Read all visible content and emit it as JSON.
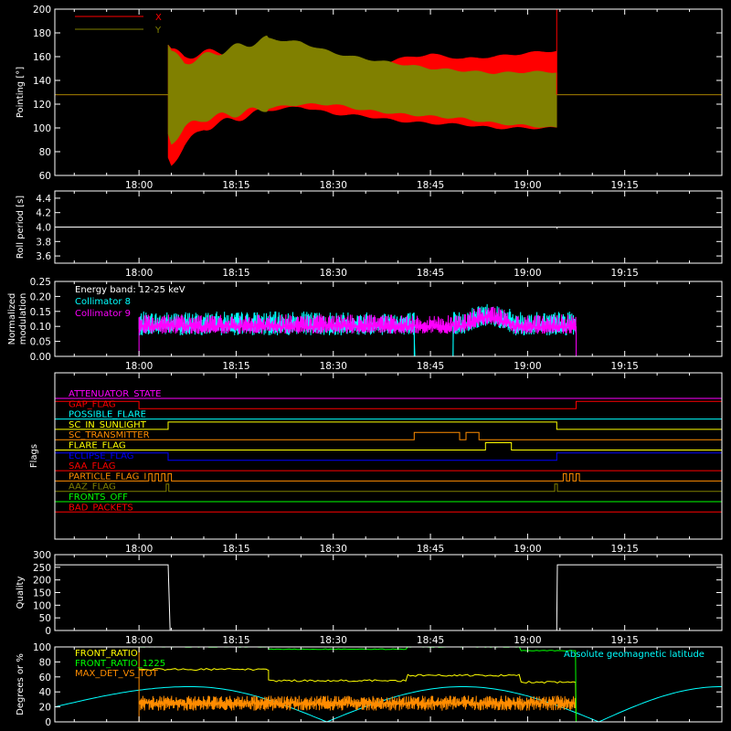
{
  "time_axis": {
    "ticks": [
      "18:00",
      "18:15",
      "18:30",
      "18:45",
      "19:00",
      "19:15"
    ],
    "tick_minutes_from_1800": [
      0,
      15,
      30,
      45,
      60,
      75
    ],
    "range_minutes_from_1800": [
      -13,
      90
    ]
  },
  "chart_data": [
    {
      "id": "pointing",
      "type": "area",
      "ylabel": "Pointing [°]",
      "ylim": [
        60,
        200
      ],
      "yticks": [
        "60",
        "80",
        "100",
        "120",
        "140",
        "160",
        "180",
        "200"
      ],
      "legend_position": "top-left",
      "series": [
        {
          "name": "X",
          "color": "#ff0000",
          "baseline": 128,
          "start": 18.07,
          "end": 19.08,
          "envelope_minutes": [
            4.5,
            5,
            7,
            10,
            15,
            20,
            25,
            30,
            35,
            40,
            45,
            50,
            55,
            60,
            64.5
          ],
          "upper": [
            170,
            165,
            160,
            163,
            165,
            160,
            155,
            152,
            150,
            158,
            162,
            158,
            160,
            163,
            165
          ],
          "lower": [
            75,
            70,
            85,
            100,
            108,
            115,
            118,
            112,
            110,
            106,
            104,
            103,
            100,
            100,
            100
          ]
        },
        {
          "name": "Y",
          "color": "#808000",
          "baseline": 128,
          "start": 18.07,
          "end": 19.08,
          "envelope_minutes": [
            4.5,
            5,
            7,
            10,
            15,
            20,
            25,
            30,
            35,
            40,
            45,
            50,
            55,
            60,
            64.5
          ],
          "upper": [
            170,
            163,
            155,
            160,
            168,
            175,
            172,
            163,
            158,
            154,
            150,
            148,
            146,
            147,
            147
          ],
          "lower": [
            95,
            88,
            100,
            108,
            112,
            117,
            120,
            120,
            115,
            112,
            110,
            108,
            104,
            102,
            100
          ]
        }
      ]
    },
    {
      "id": "roll_period",
      "type": "line",
      "ylabel": "Roll period [s]",
      "ylim": [
        3.5,
        4.5
      ],
      "yticks": [
        "3.6",
        "3.8",
        "4.0",
        "4.2",
        "4.4"
      ],
      "series": [
        {
          "name": "",
          "color": "#ffffff",
          "value": 4.0
        }
      ]
    },
    {
      "id": "modulation",
      "type": "line",
      "ylabel": "Normalized modulation",
      "ylim": [
        0.0,
        0.25
      ],
      "yticks": [
        "0.00",
        "0.05",
        "0.10",
        "0.15",
        "0.20",
        "0.25"
      ],
      "annotation": "Energy band: 12-25 keV",
      "series": [
        {
          "name": "Collimator 8",
          "color": "#00ffff",
          "start": 0,
          "end": 67.5,
          "mean": 0.1,
          "gap": [
            42.5,
            48.5
          ]
        },
        {
          "name": "Collimator 9",
          "color": "#ff00ff",
          "start": 0,
          "end": 67.5,
          "mean": 0.1
        }
      ]
    },
    {
      "id": "flags",
      "type": "line",
      "ylabel": "Flags",
      "series": [
        {
          "name": "ATTENUATOR_STATE",
          "color": "#ff00ff",
          "on_intervals": []
        },
        {
          "name": "GAP_FLAG",
          "color": "#ff0000",
          "on_intervals": [
            [
              -13,
              0
            ],
            [
              67.5,
              90
            ]
          ]
        },
        {
          "name": "POSSIBLE_FLARE",
          "color": "#00ffff",
          "on_intervals": []
        },
        {
          "name": "SC_IN_SUNLIGHT",
          "color": "#ffff00",
          "on_intervals": [
            [
              4.5,
              64.5
            ]
          ]
        },
        {
          "name": "SC_TRANSMITTER",
          "color": "#ff8c00",
          "on_intervals": [
            [
              42.5,
              49.5
            ],
            [
              50.5,
              52.5
            ]
          ]
        },
        {
          "name": "FLARE_FLAG",
          "color": "#ffff00",
          "on_intervals": [
            [
              53.5,
              57.5
            ]
          ]
        },
        {
          "name": "ECLIPSE_FLAG",
          "color": "#0000ff",
          "on_intervals": [
            [
              -13,
              4.5
            ],
            [
              64.5,
              90
            ]
          ]
        },
        {
          "name": "SAA_FLAG",
          "color": "#ff0000",
          "on_intervals": []
        },
        {
          "name": "PARTICLE_FLAG_I",
          "color": "#ff8c00",
          "on_intervals": [
            [
              1.5,
              2
            ],
            [
              2.5,
              3
            ],
            [
              3.5,
              4
            ],
            [
              4.5,
              5
            ],
            [
              65.5,
              66
            ],
            [
              66.5,
              67
            ],
            [
              67.5,
              68
            ]
          ]
        },
        {
          "name": "AAZ_FLAG",
          "color": "#808000",
          "on_intervals": [
            [
              4.2,
              4.6
            ],
            [
              64.2,
              64.6
            ]
          ]
        },
        {
          "name": "FRONTS_OFF",
          "color": "#00ff00",
          "on_intervals": []
        },
        {
          "name": "BAD_PACKETS",
          "color": "#ff0000",
          "on_intervals": []
        }
      ]
    },
    {
      "id": "quality",
      "type": "line",
      "ylabel": "Quality",
      "ylim": [
        0,
        300
      ],
      "yticks": [
        "0",
        "50",
        "100",
        "150",
        "200",
        "250",
        "300"
      ],
      "series": [
        {
          "name": "",
          "color": "#ffffff",
          "high": 260,
          "low": 0,
          "low_interval": [
            4.5,
            64.5
          ],
          "start": 0,
          "end": 90
        }
      ]
    },
    {
      "id": "ratios",
      "type": "line",
      "ylabel": "Degrees or %",
      "ylim": [
        0,
        100
      ],
      "yticks": [
        "0",
        "20",
        "40",
        "60",
        "80",
        "100"
      ],
      "series": [
        {
          "name": "FRONT_RATIO",
          "color": "#ffff00",
          "steps": [
            [
              0,
              70
            ],
            [
              20,
              55
            ],
            [
              41.5,
              62
            ],
            [
              59,
              53
            ],
            [
              67.5,
              53
            ]
          ]
        },
        {
          "name": "FRONT_RATIO_1225",
          "color": "#00ff00",
          "steps": [
            [
              0,
              100
            ],
            [
              20,
              97
            ],
            [
              41.5,
              100
            ],
            [
              59,
              95
            ],
            [
              67.5,
              95
            ]
          ]
        },
        {
          "name": "MAX_DET_VS_TOT",
          "color": "#ff8c00",
          "start": 0,
          "end": 67.5,
          "mean": 25
        },
        {
          "name": "Absolute geomagnetic latitude",
          "color": "#00ffff",
          "points_minutes": [
            -13,
            8,
            29,
            50,
            71,
            90
          ],
          "points_values": [
            20,
            47,
            0,
            47,
            0,
            47
          ]
        }
      ]
    }
  ]
}
